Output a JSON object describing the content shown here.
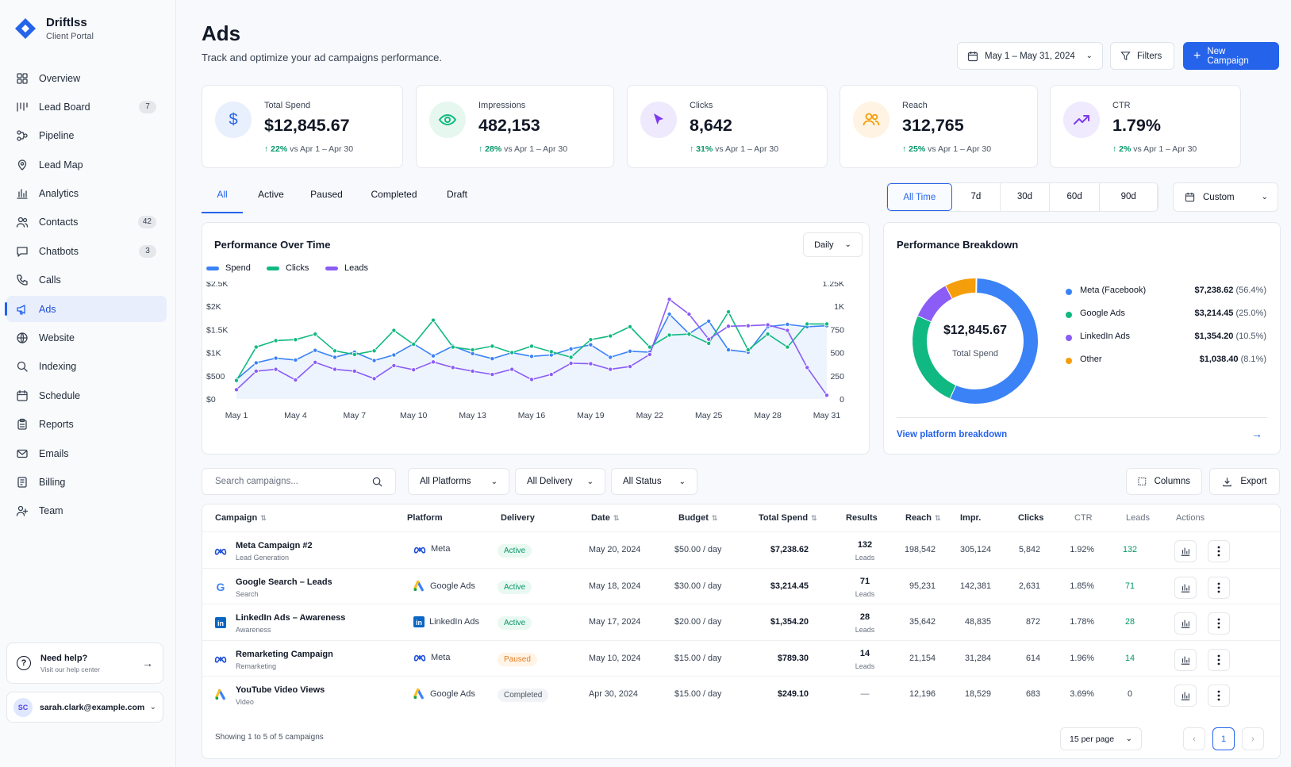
{
  "brand": {
    "name": "Driftlss",
    "subtitle": "Client Portal"
  },
  "nav": [
    {
      "label": "Overview",
      "icon": "grid-icon"
    },
    {
      "label": "Lead Board",
      "icon": "kanban-icon",
      "badge": "7"
    },
    {
      "label": "Pipeline",
      "icon": "pipeline-icon"
    },
    {
      "label": "Lead Map",
      "icon": "map-pin-icon"
    },
    {
      "label": "Analytics",
      "icon": "bar-chart-icon"
    },
    {
      "label": "Contacts",
      "icon": "users-icon",
      "badge": "42"
    },
    {
      "label": "Chatbots",
      "icon": "chat-icon",
      "badge": "3"
    },
    {
      "label": "Calls",
      "icon": "phone-icon"
    },
    {
      "label": "Ads",
      "icon": "megaphone-icon",
      "active": true
    },
    {
      "label": "Website",
      "icon": "globe-icon"
    },
    {
      "label": "Indexing",
      "icon": "search-icon"
    },
    {
      "label": "Schedule",
      "icon": "calendar-icon"
    },
    {
      "label": "Reports",
      "icon": "clipboard-icon"
    },
    {
      "label": "Emails",
      "icon": "mail-icon"
    },
    {
      "label": "Billing",
      "icon": "billing-icon"
    },
    {
      "label": "Team",
      "icon": "team-icon"
    }
  ],
  "help": {
    "title": "Need help?",
    "subtitle": "Visit our help center"
  },
  "user": {
    "email": "sarah.clark@example.com",
    "initials": "SC"
  },
  "header": {
    "title": "Ads",
    "subtitle": "Track and optimize your ad campaigns performance.",
    "date_range": "May 1 – May 31, 2024",
    "filters_label": "Filters",
    "new_campaign_label": "New Campaign"
  },
  "stats": [
    {
      "label": "Total Spend",
      "value": "$12,845.67",
      "delta": "22%",
      "period": "vs Apr 1 – Apr 30",
      "icon": "dollar-icon",
      "color": "#2563eb"
    },
    {
      "label": "Impressions",
      "value": "482,153",
      "delta": "28%",
      "period": "vs Apr 1 – Apr 30",
      "icon": "eye-icon",
      "color": "#10b981"
    },
    {
      "label": "Clicks",
      "value": "8,642",
      "delta": "31%",
      "period": "vs Apr 1 – Apr 30",
      "icon": "cursor-icon",
      "color": "#7c3aed"
    },
    {
      "label": "Reach",
      "value": "312,765",
      "delta": "25%",
      "period": "vs Apr 1 – Apr 30",
      "icon": "people-icon",
      "color": "#f59e0b"
    },
    {
      "label": "CTR",
      "value": "1.79%",
      "delta": "2%",
      "period": "vs Apr 1 – Apr 30",
      "icon": "trend-icon",
      "color": "#7c3aed"
    }
  ],
  "tabs": [
    "All",
    "Active",
    "Paused",
    "Completed",
    "Draft"
  ],
  "periods": [
    "All Time",
    "7d",
    "30d",
    "60d",
    "90d"
  ],
  "custom_label": "Custom",
  "perf": {
    "title": "Performance Over Time",
    "granularity": "Daily"
  },
  "breakdown": {
    "title": "Performance Breakdown",
    "total": "$12,845.67",
    "total_label": "Total Spend",
    "items": [
      {
        "name": "Meta (Facebook)",
        "value": "$7,238.62",
        "pct": "(56.4%)",
        "color": "#3b82f6"
      },
      {
        "name": "Google Ads",
        "value": "$3,214.45",
        "pct": "(25.0%)",
        "color": "#10b981"
      },
      {
        "name": "LinkedIn Ads",
        "value": "$1,354.20",
        "pct": "(10.5%)",
        "color": "#8b5cf6"
      },
      {
        "name": "Other",
        "value": "$1,038.40",
        "pct": "(8.1%)",
        "color": "#f59e0b"
      }
    ],
    "link": "View platform breakdown"
  },
  "chart_data": [
    {
      "type": "line",
      "x": [
        "May 1",
        "May 2",
        "May 3",
        "May 4",
        "May 5",
        "May 6",
        "May 7",
        "May 8",
        "May 9",
        "May 10",
        "May 11",
        "May 12",
        "May 13",
        "May 14",
        "May 15",
        "May 16",
        "May 17",
        "May 18",
        "May 19",
        "May 20",
        "May 21",
        "May 22",
        "May 23",
        "May 24",
        "May 25",
        "May 26",
        "May 27",
        "May 28",
        "May 29",
        "May 30",
        "May 31"
      ],
      "xticks": [
        "May 1",
        "May 4",
        "May 7",
        "May 10",
        "May 13",
        "May 16",
        "May 19",
        "May 22",
        "May 25",
        "May 28",
        "May 31"
      ],
      "yticks_left": [
        "$0",
        "$500",
        "$1K",
        "$1.5K",
        "$2K",
        "$2.5K"
      ],
      "yticks_right": [
        "0",
        "250",
        "500",
        "750",
        "1K",
        "1.25K"
      ],
      "ylim_left": [
        0,
        2500
      ],
      "ylim_right": [
        0,
        1250
      ],
      "series": [
        {
          "name": "Spend",
          "axis": "left",
          "color": "#3b82f6",
          "area": true,
          "values": [
            420,
            780,
            880,
            840,
            1050,
            900,
            1010,
            830,
            950,
            1190,
            930,
            1140,
            980,
            870,
            1000,
            920,
            950,
            1080,
            1170,
            900,
            1030,
            1010,
            1830,
            1410,
            1680,
            1060,
            1010,
            1560,
            1610,
            1560,
            1580
          ]
        },
        {
          "name": "Clicks",
          "axis": "right",
          "color": "#10b981",
          "values": [
            200,
            560,
            630,
            640,
            700,
            520,
            480,
            520,
            740,
            590,
            850,
            560,
            530,
            570,
            500,
            570,
            510,
            450,
            640,
            680,
            780,
            560,
            690,
            700,
            600,
            940,
            530,
            700,
            560,
            810,
            810
          ]
        },
        {
          "name": "Leads",
          "axis": "left",
          "color": "#8b5cf6",
          "values": [
            200,
            600,
            640,
            410,
            790,
            640,
            600,
            440,
            720,
            630,
            800,
            680,
            600,
            530,
            640,
            420,
            530,
            770,
            760,
            640,
            700,
            960,
            2150,
            1830,
            1290,
            1570,
            1580,
            1600,
            1480,
            680,
            80
          ]
        }
      ]
    },
    {
      "type": "pie",
      "title": "Performance Breakdown",
      "categories": [
        "Meta (Facebook)",
        "Google Ads",
        "LinkedIn Ads",
        "Other"
      ],
      "values": [
        7238.62,
        3214.45,
        1354.2,
        1038.4
      ]
    }
  ],
  "table_controls": {
    "search_placeholder": "Search campaigns...",
    "platforms": "All Platforms",
    "delivery": "All Delivery",
    "status": "All Status",
    "columns": "Columns",
    "export": "Export"
  },
  "table": {
    "headers": [
      "Campaign",
      "Platform",
      "Delivery",
      "Date",
      "Budget",
      "Total Spend",
      "Results",
      "Reach",
      "Impr.",
      "Clicks",
      "CTR",
      "Leads",
      "Actions"
    ],
    "rows": [
      {
        "name": "Meta Campaign #2",
        "objective": "Lead Generation",
        "platform": "Meta",
        "platform_icon": "meta-icon",
        "delivery": "Active",
        "date": "May 20, 2024",
        "budget": "$50.00 / day",
        "spend": "$7,238.62",
        "results": "132",
        "results_label": "Leads",
        "reach": "198,542",
        "impr": "305,124",
        "clicks": "5,842",
        "ctr": "1.92%",
        "leads": "132"
      },
      {
        "name": "Google Search – Leads",
        "objective": "Search",
        "platform": "Google Ads",
        "platform_icon": "google-ads-icon",
        "delivery": "Active",
        "date": "May 18, 2024",
        "budget": "$30.00 / day",
        "spend": "$3,214.45",
        "results": "71",
        "results_label": "Leads",
        "reach": "95,231",
        "impr": "142,381",
        "clicks": "2,631",
        "ctr": "1.85%",
        "leads": "71"
      },
      {
        "name": "LinkedIn Ads – Awareness",
        "objective": "Awareness",
        "platform": "LinkedIn Ads",
        "platform_icon": "linkedin-icon",
        "delivery": "Active",
        "date": "May 17, 2024",
        "budget": "$20.00 / day",
        "spend": "$1,354.20",
        "results": "28",
        "results_label": "Leads",
        "reach": "35,642",
        "impr": "48,835",
        "clicks": "872",
        "ctr": "1.78%",
        "leads": "28"
      },
      {
        "name": "Remarketing Campaign",
        "objective": "Remarketing",
        "platform": "Meta",
        "platform_icon": "meta-icon",
        "delivery": "Paused",
        "date": "May 10, 2024",
        "budget": "$15.00 / day",
        "spend": "$789.30",
        "results": "14",
        "results_label": "Leads",
        "reach": "21,154",
        "impr": "31,284",
        "clicks": "614",
        "ctr": "1.96%",
        "leads": "14"
      },
      {
        "name": "YouTube Video Views",
        "objective": "Video",
        "platform": "Google Ads",
        "platform_icon": "google-ads-icon",
        "delivery": "Completed",
        "date": "Apr 30, 2024",
        "budget": "$15.00 / day",
        "spend": "$249.10",
        "results": "—",
        "results_label": "",
        "reach": "12,196",
        "impr": "18,529",
        "clicks": "683",
        "ctr": "3.69%",
        "leads": "0"
      }
    ],
    "footer": "Showing 1 to 5 of 5 campaigns",
    "per_page": "15 per page",
    "page": "1"
  }
}
